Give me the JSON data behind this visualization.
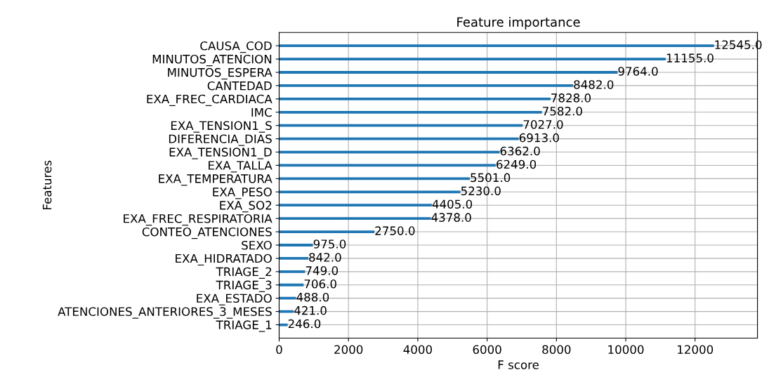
{
  "chart_data": {
    "type": "bar",
    "orientation": "horizontal",
    "title": "Feature importance",
    "xlabel": "F score",
    "ylabel": "Features",
    "categories": [
      "CAUSA_COD",
      "MINUTOS_ATENCION",
      "MINUTOS_ESPERA",
      "CANTEDAD",
      "EXA_FREC_CARDIACA",
      "IMC",
      "EXA_TENSION1_S",
      "DIFERENCIA_DIAS",
      "EXA_TENSION1_D",
      "EXA_TALLA",
      "EXA_TEMPERATURA",
      "EXA_PESO",
      "EXA_SO2",
      "EXA_FREC_RESPIRATORIA",
      "CONTEO_ATENCIONES",
      "SEXO",
      "EXA_HIDRATADO",
      "TRIAGE_2",
      "TRIAGE_3",
      "EXA_ESTADO",
      "ATENCIONES_ANTERIORES_3_MESES",
      "TRIAGE_1"
    ],
    "values": [
      12545,
      11155,
      9764,
      8482,
      7828,
      7582,
      7027,
      6913,
      6362,
      6249,
      5501,
      5230,
      4405,
      4378,
      2750,
      975,
      842,
      749,
      706,
      488,
      421,
      246
    ],
    "value_labels": [
      "12545.0",
      "11155.0",
      "9764.0",
      "8482.0",
      "7828.0",
      "7582.0",
      "7027.0",
      "6913.0",
      "6362.0",
      "6249.0",
      "5501.0",
      "5230.0",
      "4405.0",
      "4378.0",
      "2750.0",
      "975.0",
      "842.0",
      "749.0",
      "706.0",
      "488.0",
      "421.0",
      "246.0"
    ],
    "color": "#1f77b4",
    "xlim": [
      0,
      13800
    ],
    "xticks": [
      0,
      2000,
      4000,
      6000,
      8000,
      10000,
      12000
    ],
    "grid": true
  }
}
